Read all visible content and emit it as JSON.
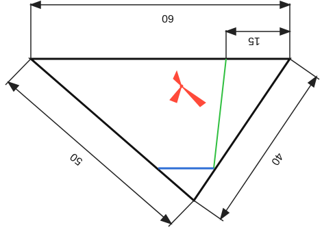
{
  "figure": {
    "dimensions": {
      "top": "60",
      "offset": "15",
      "left_side": "50",
      "right_side": "40"
    },
    "colors": {
      "outline": "#111111",
      "dimension_lines": "#222222",
      "green_line": "#2fbf3f",
      "blue_line": "#2f6fd6",
      "symbol": "#ff4a3a"
    },
    "symbols": [
      "red-tri-arrow-symbol"
    ]
  }
}
